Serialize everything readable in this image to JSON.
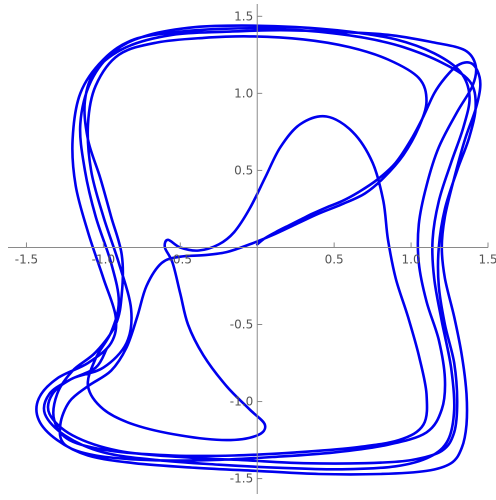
{
  "chart_data": {
    "type": "line",
    "title": "",
    "xlabel": "",
    "ylabel": "",
    "xlim": [
      -1.62,
      1.5
    ],
    "ylim": [
      -1.6,
      1.58
    ],
    "grid": false,
    "axes_cross_at_origin": true,
    "x_ticks": [
      {
        "value": -1.5,
        "label": "-1.5"
      },
      {
        "value": -1.0,
        "label": "-1.0"
      },
      {
        "value": -0.5,
        "label": "-0.5"
      },
      {
        "value": 0.5,
        "label": "0.5"
      },
      {
        "value": 1.0,
        "label": "1.0"
      },
      {
        "value": 1.5,
        "label": "1.5"
      }
    ],
    "y_ticks": [
      {
        "value": 1.5,
        "label": "1.5"
      },
      {
        "value": 1.0,
        "label": "1.0"
      },
      {
        "value": 0.5,
        "label": "0.5"
      },
      {
        "value": -0.5,
        "label": "-0.5"
      },
      {
        "value": -1.0,
        "label": "-1.0"
      },
      {
        "value": -1.5,
        "label": "-1.5"
      }
    ],
    "series": [
      {
        "color": "#0000ee",
        "description_points": "phase-space trajectory (x, y) sampled approximately",
        "points": [
          [
            0.0,
            0.02
          ],
          [
            0.05,
            0.06
          ],
          [
            0.12,
            0.1
          ],
          [
            0.2,
            0.14
          ],
          [
            0.28,
            0.18
          ],
          [
            0.36,
            0.22
          ],
          [
            0.45,
            0.26
          ],
          [
            0.55,
            0.3
          ],
          [
            0.66,
            0.36
          ],
          [
            0.78,
            0.44
          ],
          [
            0.9,
            0.55
          ],
          [
            1.0,
            0.7
          ],
          [
            1.08,
            0.85
          ],
          [
            1.15,
            1.0
          ],
          [
            1.22,
            1.1
          ],
          [
            1.3,
            1.18
          ],
          [
            1.38,
            1.2
          ],
          [
            1.43,
            1.15
          ],
          [
            1.45,
            1.05
          ],
          [
            1.42,
            0.9
          ],
          [
            1.35,
            0.7
          ],
          [
            1.28,
            0.45
          ],
          [
            1.22,
            0.2
          ],
          [
            1.2,
            0.0
          ],
          [
            1.22,
            -0.2
          ],
          [
            1.28,
            -0.45
          ],
          [
            1.33,
            -0.7
          ],
          [
            1.36,
            -0.95
          ],
          [
            1.36,
            -1.15
          ],
          [
            1.33,
            -1.3
          ],
          [
            1.26,
            -1.4
          ],
          [
            1.1,
            -1.45
          ],
          [
            0.8,
            -1.47
          ],
          [
            0.4,
            -1.47
          ],
          [
            0.0,
            -1.45
          ],
          [
            -0.4,
            -1.43
          ],
          [
            -0.8,
            -1.4
          ],
          [
            -1.1,
            -1.35
          ],
          [
            -1.3,
            -1.25
          ],
          [
            -1.42,
            -1.12
          ],
          [
            -1.42,
            -0.98
          ],
          [
            -1.3,
            -0.85
          ],
          [
            -1.1,
            -0.75
          ],
          [
            -0.95,
            -0.62
          ],
          [
            -0.92,
            -0.45
          ],
          [
            -1.0,
            -0.2
          ],
          [
            -1.1,
            0.1
          ],
          [
            -1.18,
            0.4
          ],
          [
            -1.2,
            0.7
          ],
          [
            -1.15,
            1.0
          ],
          [
            -1.0,
            1.22
          ],
          [
            -0.8,
            1.35
          ],
          [
            -0.5,
            1.4
          ],
          [
            -0.2,
            1.42
          ],
          [
            0.1,
            1.42
          ],
          [
            0.4,
            1.4
          ],
          [
            0.7,
            1.36
          ],
          [
            0.95,
            1.3
          ],
          [
            1.2,
            1.2
          ],
          [
            1.38,
            1.08
          ],
          [
            1.42,
            0.92
          ],
          [
            1.38,
            0.72
          ],
          [
            1.3,
            0.5
          ],
          [
            1.22,
            0.25
          ],
          [
            1.18,
            0.0
          ],
          [
            1.18,
            -0.25
          ],
          [
            1.22,
            -0.5
          ],
          [
            1.28,
            -0.75
          ],
          [
            1.3,
            -1.0
          ],
          [
            1.28,
            -1.2
          ],
          [
            1.2,
            -1.32
          ],
          [
            1.0,
            -1.38
          ],
          [
            0.7,
            -1.4
          ],
          [
            0.3,
            -1.4
          ],
          [
            -0.1,
            -1.38
          ],
          [
            -0.5,
            -1.36
          ],
          [
            -0.9,
            -1.32
          ],
          [
            -1.2,
            -1.22
          ],
          [
            -1.35,
            -1.08
          ],
          [
            -1.33,
            -0.95
          ],
          [
            -1.2,
            -0.85
          ],
          [
            -1.0,
            -0.78
          ],
          [
            -0.85,
            -0.62
          ],
          [
            -0.82,
            -0.4
          ],
          [
            -0.9,
            -0.1
          ],
          [
            -1.0,
            0.2
          ],
          [
            -1.08,
            0.5
          ],
          [
            -1.1,
            0.8
          ],
          [
            -1.05,
            1.05
          ],
          [
            -0.9,
            1.25
          ],
          [
            -0.65,
            1.33
          ],
          [
            -0.35,
            1.36
          ],
          [
            -0.05,
            1.37
          ],
          [
            0.3,
            1.35
          ],
          [
            0.6,
            1.3
          ],
          [
            0.85,
            1.22
          ],
          [
            1.05,
            1.1
          ],
          [
            1.1,
            0.95
          ],
          [
            1.05,
            0.78
          ],
          [
            0.95,
            0.6
          ],
          [
            0.82,
            0.45
          ],
          [
            0.7,
            0.35
          ],
          [
            0.55,
            0.28
          ],
          [
            0.4,
            0.22
          ],
          [
            0.25,
            0.15
          ],
          [
            0.1,
            0.08
          ],
          [
            -0.05,
            0.02
          ],
          [
            -0.2,
            -0.03
          ],
          [
            -0.35,
            -0.05
          ],
          [
            -0.5,
            -0.06
          ],
          [
            -0.62,
            -0.1
          ],
          [
            -0.72,
            -0.25
          ],
          [
            -0.78,
            -0.45
          ],
          [
            -0.85,
            -0.65
          ],
          [
            -0.95,
            -0.8
          ],
          [
            -1.1,
            -0.9
          ],
          [
            -1.22,
            -1.0
          ],
          [
            -1.28,
            -1.15
          ],
          [
            -1.25,
            -1.28
          ],
          [
            -1.05,
            -1.35
          ],
          [
            -0.7,
            -1.38
          ],
          [
            -0.3,
            -1.38
          ],
          [
            0.1,
            -1.36
          ],
          [
            0.5,
            -1.33
          ],
          [
            0.85,
            -1.28
          ],
          [
            1.1,
            -1.2
          ],
          [
            1.2,
            -1.05
          ],
          [
            1.22,
            -0.85
          ],
          [
            1.18,
            -0.6
          ],
          [
            1.1,
            -0.35
          ],
          [
            1.05,
            -0.1
          ],
          [
            1.05,
            0.15
          ],
          [
            1.1,
            0.4
          ],
          [
            1.18,
            0.65
          ],
          [
            1.3,
            0.88
          ],
          [
            1.4,
            1.05
          ],
          [
            1.42,
            1.18
          ],
          [
            1.35,
            1.28
          ],
          [
            1.15,
            1.33
          ],
          [
            0.85,
            1.38
          ],
          [
            0.5,
            1.4
          ],
          [
            0.15,
            1.41
          ],
          [
            -0.2,
            1.4
          ],
          [
            -0.55,
            1.38
          ],
          [
            -0.85,
            1.3
          ],
          [
            -1.05,
            1.15
          ],
          [
            -1.12,
            0.95
          ],
          [
            -1.1,
            0.7
          ],
          [
            -1.02,
            0.45
          ],
          [
            -0.95,
            0.2
          ],
          [
            -0.88,
            -0.05
          ],
          [
            -0.88,
            -0.3
          ],
          [
            -0.92,
            -0.5
          ],
          [
            -1.05,
            -0.68
          ],
          [
            -1.2,
            -0.8
          ],
          [
            -1.3,
            -0.95
          ],
          [
            -1.32,
            -1.12
          ],
          [
            -1.22,
            -1.25
          ],
          [
            -0.95,
            -1.32
          ],
          [
            -0.55,
            -1.35
          ],
          [
            -0.15,
            -1.35
          ],
          [
            0.25,
            -1.33
          ],
          [
            0.62,
            -1.3
          ],
          [
            0.92,
            -1.25
          ],
          [
            1.08,
            -1.15
          ],
          [
            1.1,
            -0.95
          ],
          [
            1.05,
            -0.7
          ],
          [
            0.98,
            -0.45
          ],
          [
            0.9,
            -0.2
          ],
          [
            0.85,
            0.05
          ],
          [
            0.82,
            0.3
          ],
          [
            0.75,
            0.55
          ],
          [
            0.62,
            0.75
          ],
          [
            0.45,
            0.85
          ],
          [
            0.28,
            0.8
          ],
          [
            0.15,
            0.65
          ],
          [
            0.05,
            0.45
          ],
          [
            -0.05,
            0.25
          ],
          [
            -0.15,
            0.1
          ],
          [
            -0.25,
            0.02
          ],
          [
            -0.38,
            -0.02
          ],
          [
            -0.5,
            0.0
          ],
          [
            -0.58,
            0.05
          ],
          [
            -0.6,
            0.0
          ],
          [
            -0.55,
            -0.1
          ],
          [
            -0.5,
            -0.3
          ],
          [
            -0.45,
            -0.5
          ],
          [
            -0.35,
            -0.7
          ],
          [
            -0.2,
            -0.9
          ],
          [
            -0.05,
            -1.05
          ],
          [
            0.05,
            -1.15
          ],
          [
            0.0,
            -1.22
          ],
          [
            -0.2,
            -1.25
          ],
          [
            -0.5,
            -1.22
          ],
          [
            -0.8,
            -1.15
          ],
          [
            -1.0,
            -1.05
          ],
          [
            -1.1,
            -0.9
          ],
          [
            -1.05,
            -0.72
          ],
          [
            -0.95,
            -0.55
          ],
          [
            -0.9,
            -0.35
          ],
          [
            -0.95,
            -0.1
          ],
          [
            -1.05,
            0.2
          ],
          [
            -1.12,
            0.5
          ],
          [
            -1.15,
            0.8
          ],
          [
            -1.08,
            1.08
          ],
          [
            -0.92,
            1.28
          ],
          [
            -0.7,
            1.38
          ],
          [
            -0.4,
            1.43
          ],
          [
            -0.1,
            1.44
          ],
          [
            0.25,
            1.43
          ],
          [
            0.6,
            1.4
          ],
          [
            0.9,
            1.35
          ],
          [
            1.15,
            1.26
          ],
          [
            1.32,
            1.14
          ],
          [
            1.38,
            0.98
          ],
          [
            1.34,
            0.78
          ],
          [
            1.26,
            0.55
          ],
          [
            1.18,
            0.3
          ],
          [
            1.14,
            0.05
          ],
          [
            1.15,
            -0.2
          ],
          [
            1.2,
            -0.48
          ],
          [
            1.26,
            -0.78
          ],
          [
            1.28,
            -1.05
          ],
          [
            1.24,
            -1.25
          ],
          [
            1.12,
            -1.36
          ],
          [
            0.9,
            -1.42
          ],
          [
            0.55,
            -1.44
          ],
          [
            0.15,
            -1.43
          ],
          [
            -0.25,
            -1.41
          ],
          [
            -0.65,
            -1.38
          ],
          [
            -1.0,
            -1.33
          ],
          [
            -1.25,
            -1.22
          ],
          [
            -1.38,
            -1.08
          ],
          [
            -1.35,
            -0.95
          ],
          [
            -1.22,
            -0.86
          ],
          [
            -1.05,
            -0.78
          ],
          [
            -0.98,
            -0.66
          ]
        ]
      }
    ]
  }
}
